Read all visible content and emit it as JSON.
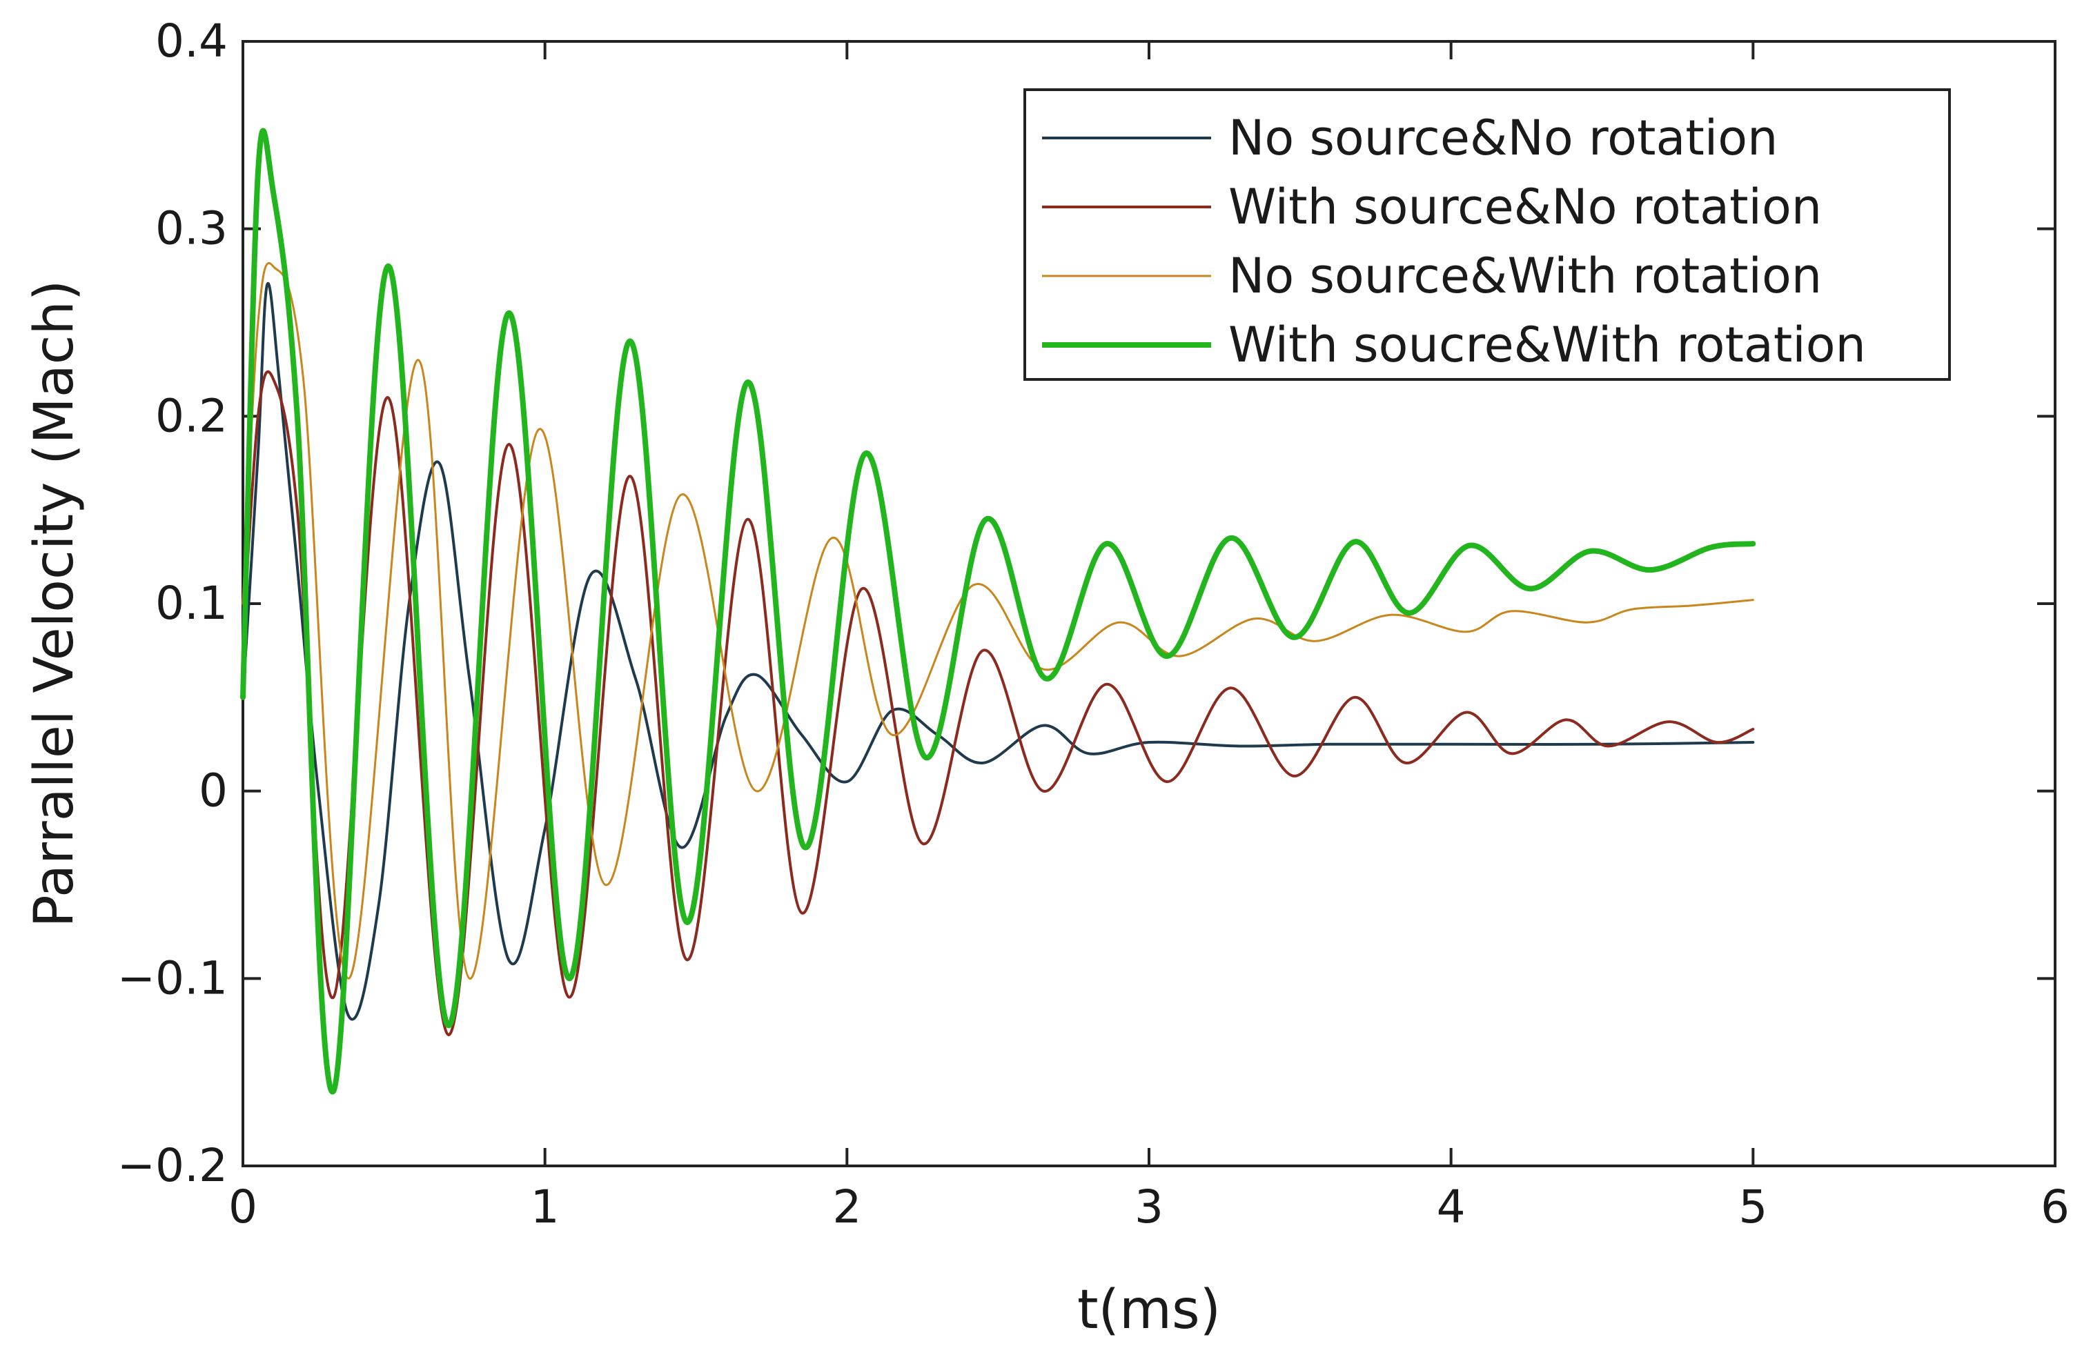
{
  "chart_data": {
    "type": "line",
    "xlabel": "t(ms)",
    "ylabel": "Parrallel Velocity (Mach)",
    "xlim": [
      0,
      6
    ],
    "ylim": [
      -0.2,
      0.4
    ],
    "xticks": [
      0,
      1,
      2,
      3,
      4,
      5,
      6
    ],
    "yticks": [
      -0.2,
      -0.1,
      0,
      0.1,
      0.2,
      0.3,
      0.4
    ],
    "xtick_labels": [
      "0",
      "1",
      "2",
      "3",
      "4",
      "5",
      "6"
    ],
    "ytick_labels": [
      "−0.2",
      "−0.1",
      "0",
      "0.1",
      "0.2",
      "0.3",
      "0.4"
    ],
    "grid": false,
    "legend_position": "top-right",
    "series": [
      {
        "name": "No source&No rotation",
        "color": "#1f3a4d",
        "x": [
          0,
          0.05,
          0.08,
          0.12,
          0.18,
          0.25,
          0.35,
          0.45,
          0.55,
          0.65,
          0.75,
          0.88,
          1.0,
          1.15,
          1.3,
          1.45,
          1.6,
          1.7,
          1.85,
          2.0,
          2.15,
          2.3,
          2.45,
          2.65,
          2.8,
          3.0,
          3.3,
          3.6,
          4.0,
          4.5,
          5.0
        ],
        "values": [
          0.05,
          0.18,
          0.27,
          0.22,
          0.12,
          0.0,
          -0.12,
          -0.06,
          0.1,
          0.175,
          0.06,
          -0.09,
          -0.02,
          0.115,
          0.06,
          -0.03,
          0.04,
          0.062,
          0.03,
          0.005,
          0.043,
          0.03,
          0.015,
          0.035,
          0.02,
          0.026,
          0.024,
          0.025,
          0.025,
          0.025,
          0.026
        ]
      },
      {
        "name": "With source&No rotation",
        "color": "#8b2a1e",
        "x": [
          0,
          0.05,
          0.1,
          0.18,
          0.3,
          0.48,
          0.68,
          0.88,
          1.08,
          1.28,
          1.47,
          1.67,
          1.85,
          2.05,
          2.25,
          2.45,
          2.65,
          2.86,
          3.06,
          3.27,
          3.48,
          3.68,
          3.85,
          4.05,
          4.2,
          4.38,
          4.52,
          4.72,
          4.88,
          5.0
        ],
        "values": [
          0.08,
          0.2,
          0.22,
          0.15,
          -0.11,
          0.21,
          -0.13,
          0.185,
          -0.11,
          0.168,
          -0.09,
          0.145,
          -0.065,
          0.108,
          -0.028,
          0.075,
          0.0,
          0.057,
          0.005,
          0.055,
          0.008,
          0.05,
          0.015,
          0.042,
          0.02,
          0.038,
          0.024,
          0.037,
          0.026,
          0.033
        ]
      },
      {
        "name": "No source&With rotation",
        "color": "#c8861c",
        "x": [
          0,
          0.05,
          0.1,
          0.2,
          0.35,
          0.58,
          0.75,
          0.98,
          1.2,
          1.45,
          1.7,
          1.95,
          2.15,
          2.42,
          2.65,
          2.9,
          3.1,
          3.35,
          3.55,
          3.8,
          4.05,
          4.2,
          4.45,
          4.6,
          4.8,
          5.0
        ],
        "values": [
          0.1,
          0.25,
          0.28,
          0.22,
          -0.1,
          0.23,
          -0.1,
          0.193,
          -0.05,
          0.158,
          0.0,
          0.135,
          0.03,
          0.11,
          0.065,
          0.09,
          0.072,
          0.092,
          0.08,
          0.094,
          0.085,
          0.096,
          0.09,
          0.097,
          0.099,
          0.102
        ]
      },
      {
        "name": "With soucre&With rotation",
        "color": "#22b51e",
        "x": [
          0,
          0.05,
          0.1,
          0.18,
          0.3,
          0.48,
          0.68,
          0.88,
          1.08,
          1.28,
          1.47,
          1.67,
          1.86,
          2.06,
          2.26,
          2.46,
          2.66,
          2.86,
          3.06,
          3.27,
          3.48,
          3.68,
          3.86,
          4.06,
          4.26,
          4.46,
          4.66,
          4.86,
          5.0
        ],
        "values": [
          0.05,
          0.33,
          0.32,
          0.2,
          -0.16,
          0.28,
          -0.125,
          0.255,
          -0.1,
          0.24,
          -0.07,
          0.218,
          -0.03,
          0.18,
          0.018,
          0.145,
          0.06,
          0.132,
          0.072,
          0.135,
          0.082,
          0.133,
          0.095,
          0.131,
          0.108,
          0.128,
          0.118,
          0.13,
          0.132
        ]
      }
    ]
  }
}
